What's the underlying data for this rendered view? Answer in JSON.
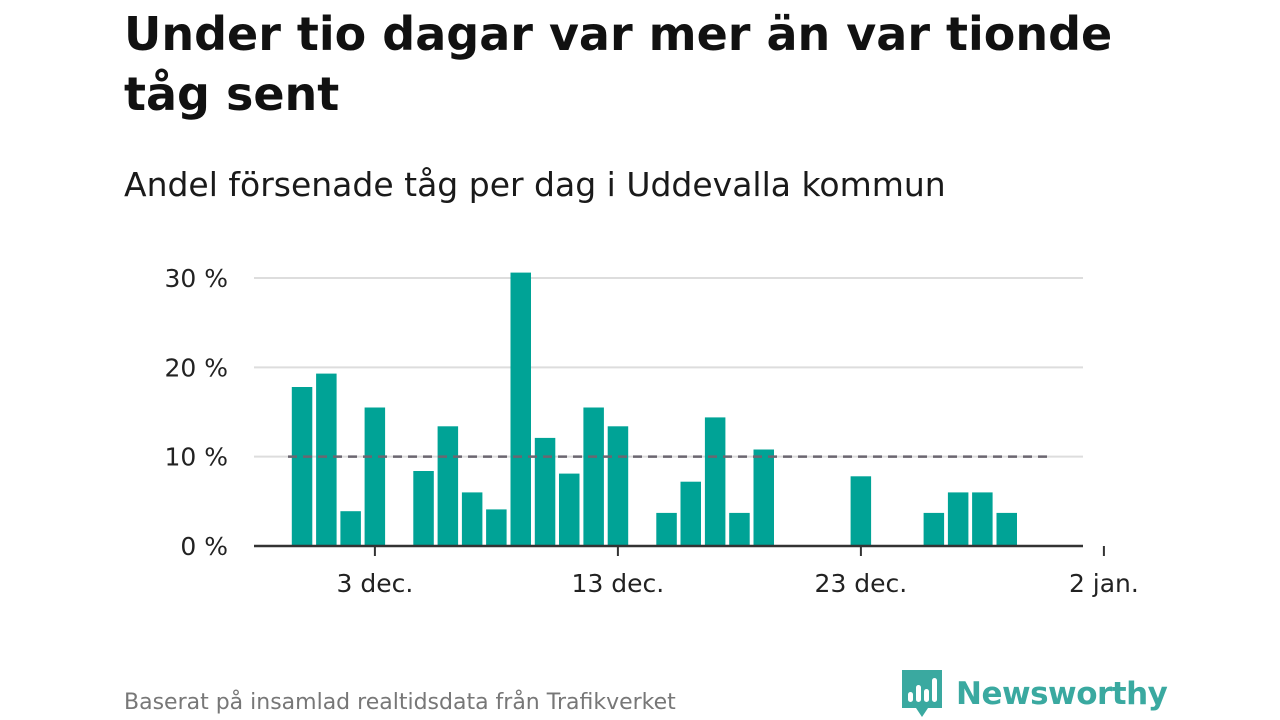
{
  "header": {
    "title": "Under tio dagar var mer än var tionde tåg sent",
    "subtitle": "Andel försenade tåg per dag i Uddevalla kommun"
  },
  "footer": {
    "source": "Baserat på insamlad realtidsdata från Trafikverket"
  },
  "brand": {
    "name": "Newsworthy",
    "color": "#3aa9a0"
  },
  "colors": {
    "bar": "#00a396",
    "grid": "#dddddd",
    "axis": "#333333",
    "reference_line": "#6b6670"
  },
  "chart_data": {
    "type": "bar",
    "title": "Under tio dagar var mer än var tionde tåg sent",
    "subtitle": "Andel försenade tåg per dag i Uddevalla kommun",
    "x": [
      "2022-11-30",
      "2022-12-01",
      "2022-12-02",
      "2022-12-03",
      "2022-12-04",
      "2022-12-05",
      "2022-12-06",
      "2022-12-07",
      "2022-12-08",
      "2022-12-09",
      "2022-12-10",
      "2022-12-11",
      "2022-12-12",
      "2022-12-13",
      "2022-12-14",
      "2022-12-15",
      "2022-12-16",
      "2022-12-17",
      "2022-12-18",
      "2022-12-19",
      "2022-12-20",
      "2022-12-21",
      "2022-12-22",
      "2022-12-23",
      "2022-12-24",
      "2022-12-25",
      "2022-12-26",
      "2022-12-27",
      "2022-12-28",
      "2022-12-29",
      "2022-12-30",
      "2022-12-31",
      "2023-01-01"
    ],
    "values": [
      17.8,
      19.3,
      3.9,
      15.5,
      0,
      8.4,
      13.4,
      6.0,
      4.1,
      30.6,
      12.1,
      8.1,
      15.5,
      13.4,
      0,
      3.7,
      7.2,
      14.4,
      3.7,
      10.8,
      0,
      0,
      0,
      7.8,
      0,
      0,
      3.7,
      6.0,
      6.0,
      3.7,
      0,
      0,
      0
    ],
    "reference_line": {
      "value": 10,
      "style": "dashed"
    },
    "x_ticks": [
      "3 dec.",
      "13 dec.",
      "23 dec.",
      "2 jan."
    ],
    "x_tick_dates": [
      "2022-12-03",
      "2022-12-13",
      "2022-12-23",
      "2023-01-02"
    ],
    "y_ticks": [
      "0 %",
      "10 %",
      "20 %",
      "30 %"
    ],
    "y_tick_values": [
      0,
      10,
      20,
      30
    ],
    "ylim": [
      0,
      30
    ],
    "grid": true,
    "legend": false
  }
}
